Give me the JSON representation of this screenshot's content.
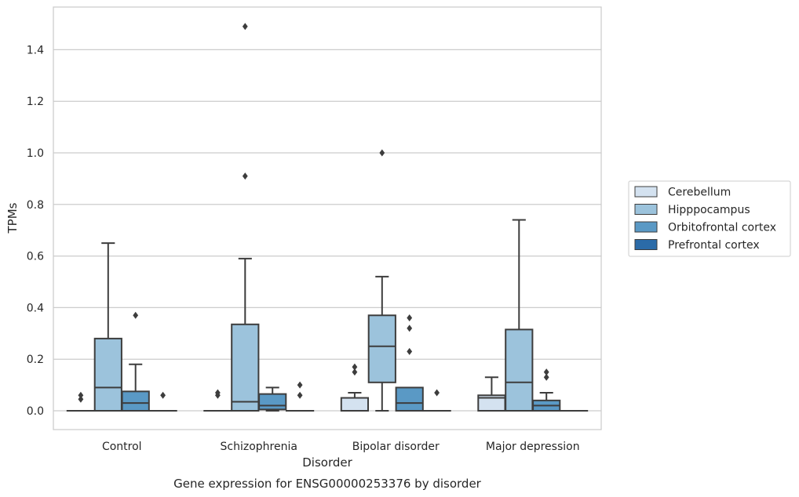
{
  "caption": "Gene expression for ENSG00000253376 by disorder",
  "chart_data": {
    "type": "box",
    "title": "",
    "xlabel": "Disorder",
    "ylabel": "TPMs",
    "ylim": [
      -0.07,
      1.57
    ],
    "yticks": [
      0.0,
      0.2,
      0.4,
      0.6,
      0.8,
      1.0,
      1.2,
      1.4
    ],
    "ytick_labels": [
      "0.0",
      "0.2",
      "0.4",
      "0.6",
      "0.8",
      "1.0",
      "1.2",
      "1.4"
    ],
    "grid": "horizontal",
    "legend_position": "right",
    "categories": [
      "Control",
      "Schizophrenia",
      "Bipolar disorder",
      "Major depression"
    ],
    "series": [
      {
        "name": "Cerebellum",
        "color": "#d4e2f0",
        "boxes": [
          {
            "q1": 0,
            "median": 0,
            "q3": 0,
            "whislo": 0,
            "whishi": 0,
            "fliers": [
              0.045,
              0.06
            ]
          },
          {
            "q1": 0,
            "median": 0,
            "q3": 0,
            "whislo": 0,
            "whishi": 0,
            "fliers": [
              0.06,
              0.07
            ]
          },
          {
            "q1": 0,
            "median": 0,
            "q3": 0.05,
            "whislo": 0,
            "whishi": 0.07,
            "fliers": [
              0.15,
              0.17
            ]
          },
          {
            "q1": 0,
            "median": 0.05,
            "q3": 0.06,
            "whislo": 0,
            "whishi": 0.13,
            "fliers": []
          }
        ]
      },
      {
        "name": "Hipppocampus",
        "color": "#9cc3dc",
        "boxes": [
          {
            "q1": 0,
            "median": 0.09,
            "q3": 0.28,
            "whislo": 0,
            "whishi": 0.65,
            "fliers": []
          },
          {
            "q1": 0,
            "median": 0.035,
            "q3": 0.335,
            "whislo": 0,
            "whishi": 0.59,
            "fliers": [
              0.91,
              1.49
            ]
          },
          {
            "q1": 0.11,
            "median": 0.25,
            "q3": 0.37,
            "whislo": 0,
            "whishi": 0.52,
            "fliers": [
              1.0
            ]
          },
          {
            "q1": 0,
            "median": 0.11,
            "q3": 0.315,
            "whislo": 0,
            "whishi": 0.74,
            "fliers": []
          }
        ]
      },
      {
        "name": "Orbitofrontal cortex",
        "color": "#5a99c5",
        "boxes": [
          {
            "q1": 0,
            "median": 0.03,
            "q3": 0.075,
            "whislo": 0,
            "whishi": 0.18,
            "fliers": [
              0.37
            ]
          },
          {
            "q1": 0.005,
            "median": 0.02,
            "q3": 0.065,
            "whislo": 0,
            "whishi": 0.09,
            "fliers": []
          },
          {
            "q1": 0,
            "median": 0.03,
            "q3": 0.09,
            "whislo": 0,
            "whishi": 0.09,
            "fliers": [
              0.23,
              0.32,
              0.36
            ]
          },
          {
            "q1": 0,
            "median": 0.02,
            "q3": 0.04,
            "whislo": 0,
            "whishi": 0.07,
            "fliers": [
              0.13,
              0.15
            ]
          }
        ]
      },
      {
        "name": "Prefrontal cortex",
        "color": "#2b6ba8",
        "boxes": [
          {
            "q1": 0,
            "median": 0,
            "q3": 0,
            "whislo": 0,
            "whishi": 0,
            "fliers": [
              0.06
            ]
          },
          {
            "q1": 0,
            "median": 0,
            "q3": 0,
            "whislo": 0,
            "whishi": 0,
            "fliers": [
              0.06,
              0.1
            ]
          },
          {
            "q1": 0,
            "median": 0,
            "q3": 0,
            "whislo": 0,
            "whishi": 0,
            "fliers": [
              0.07
            ]
          },
          {
            "q1": 0,
            "median": 0,
            "q3": 0,
            "whislo": 0,
            "whishi": 0,
            "fliers": []
          }
        ]
      }
    ],
    "colors": {
      "grid": "#cccccc",
      "frame": "#cccccc",
      "line": "#3d3d3d",
      "text": "#262626"
    }
  }
}
